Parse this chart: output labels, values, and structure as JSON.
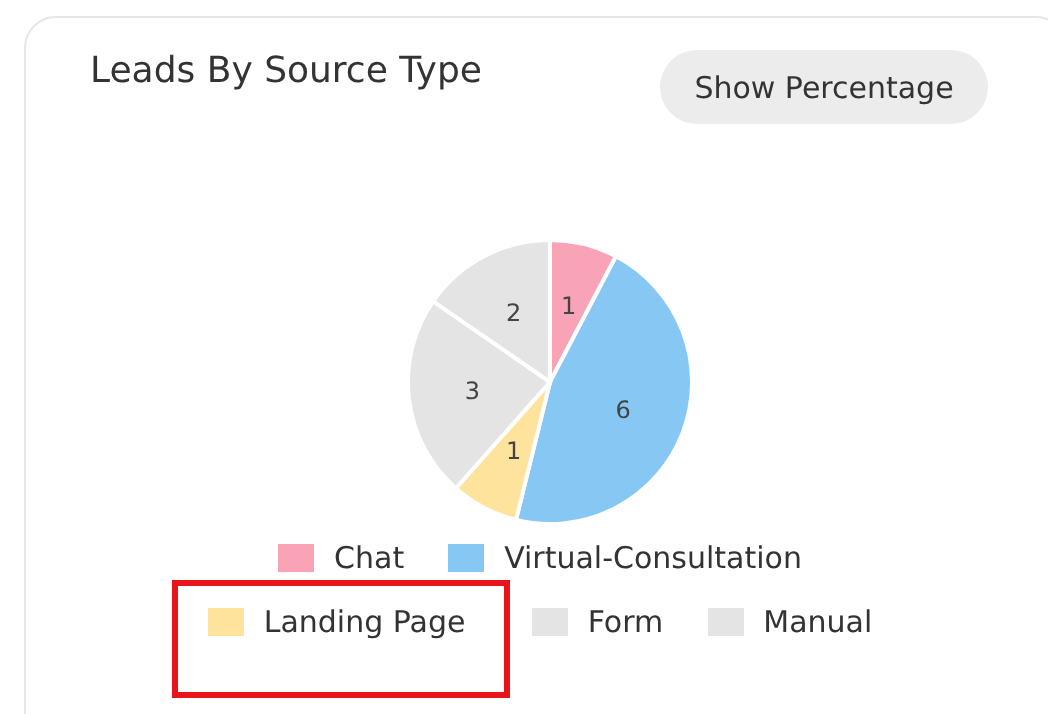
{
  "chart_data": {
    "type": "pie",
    "title": "Leads By Source Type",
    "categories": [
      "Chat",
      "Virtual-Consultation",
      "Landing Page",
      "Form",
      "Manual"
    ],
    "values": [
      1,
      6,
      1,
      3,
      2
    ],
    "colors": [
      "#f9a3b7",
      "#87c7f4",
      "#fde39c",
      "#e4e4e4",
      "#e4e4e4"
    ],
    "data_labels": true,
    "legend": "bottom",
    "annotations": [
      "Show Percentage"
    ]
  }
}
